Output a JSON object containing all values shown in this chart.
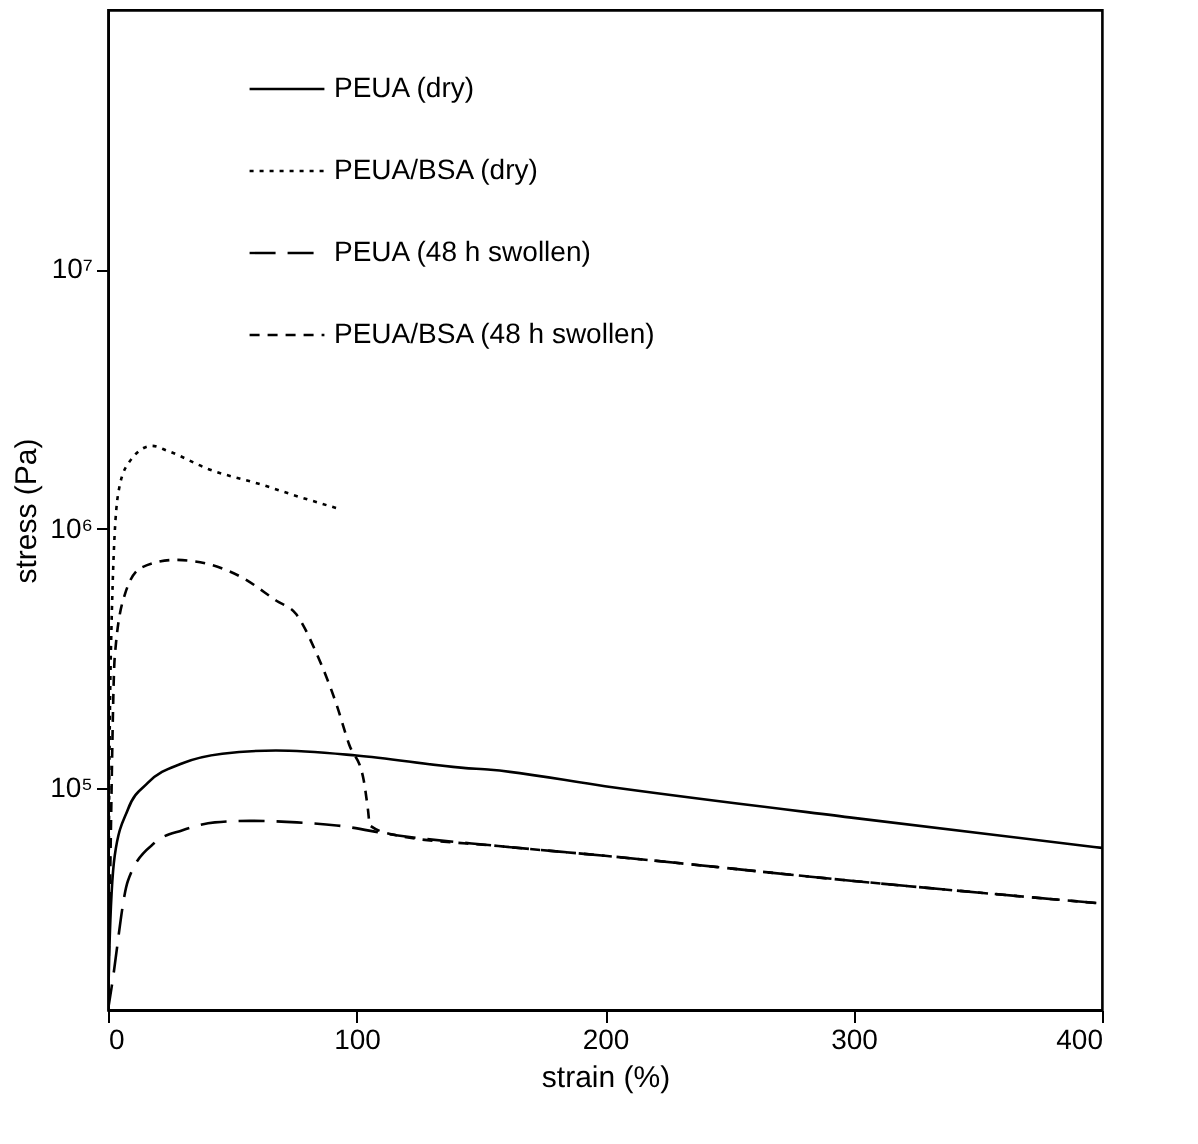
{
  "chart_data": {
    "type": "line",
    "xlabel": "strain (%)",
    "ylabel": "stress (Pa)",
    "log": "y",
    "grid": false,
    "legend": "top",
    "marker": "none",
    "xlim": [
      0,
      400
    ],
    "xticks": [
      0,
      100,
      200,
      300,
      400
    ],
    "ylim": [
      14000,
      100000000
    ],
    "yticks": [
      {
        "value": 100000,
        "label": "10⁵"
      },
      {
        "value": 1000000,
        "label": "10⁶"
      },
      {
        "value": 10000000,
        "label": "10⁷"
      }
    ],
    "series": [
      {
        "name": "PEUA (dry)",
        "color": "#000000",
        "line_style": "solid",
        "x": [
          0,
          0.5,
          2.7,
          8,
          16,
          30,
          46,
          67.6,
          100,
          143,
          154,
          200,
          300,
          400
        ],
        "values": [
          14000,
          23000,
          55000,
          83000,
          105000,
          125000,
          136000,
          140000,
          134000,
          120000,
          118000,
          102000,
          77000,
          59000
        ]
      },
      {
        "name": "PEUA/BSA (dry)",
        "color": "#000000",
        "line_style": "dotted",
        "x": [
          0,
          0.5,
          1.4,
          4,
          8,
          17.6,
          24,
          40.5,
          62,
          78,
          92.4
        ],
        "values": [
          14000,
          100000,
          420000,
          1350000,
          1780000,
          2090000,
          2000000,
          1700000,
          1480000,
          1320000,
          1200000
        ]
      },
      {
        "name": "PEUA (48 h swollen)",
        "color": "#000000",
        "line_style": "dashed",
        "x": [
          0,
          1.4,
          8,
          19,
          30,
          43,
          57,
          76,
          92,
          116,
          157,
          200,
          300,
          400
        ],
        "values": [
          14000,
          17000,
          44000,
          62000,
          69000,
          74000,
          75000,
          74000,
          72000,
          66000,
          60000,
          55000,
          44000,
          36000
        ]
      },
      {
        "name": "PEUA/BSA (48 h swollen)",
        "color": "#000000",
        "line_style": "dashed",
        "x": [
          0,
          0.8,
          2.7,
          6.8,
          13.5,
          27,
          35,
          54,
          67.6,
          75.7,
          84,
          92,
          97,
          102.7,
          104.6,
          105.4,
          116,
          157,
          200,
          300,
          400
        ],
        "values": [
          14000,
          42000,
          320000,
          560000,
          710000,
          760000,
          750000,
          650000,
          530000,
          470000,
          330000,
          210000,
          148000,
          110000,
          83000,
          72000,
          66000,
          60000,
          55000,
          44000,
          36000
        ]
      }
    ]
  }
}
